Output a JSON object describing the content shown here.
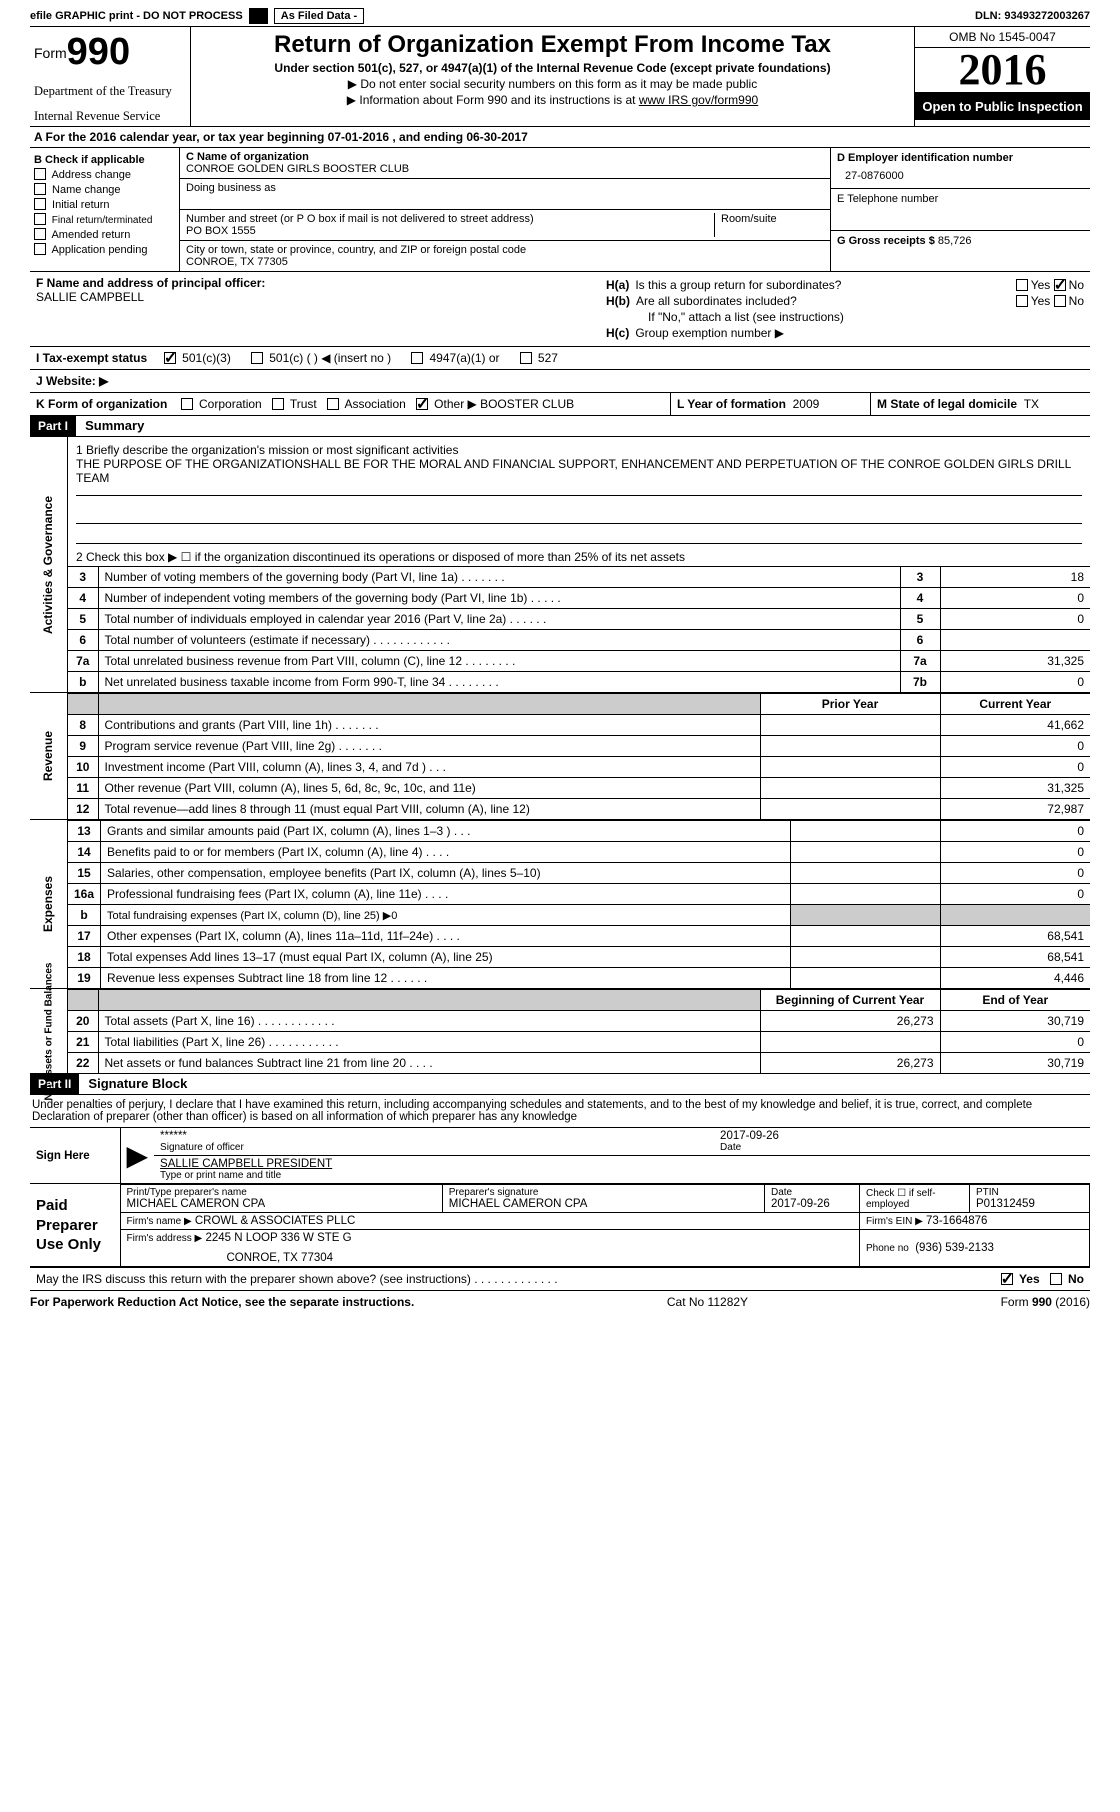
{
  "topbar": {
    "efile": "efile GRAPHIC print - DO NOT PROCESS",
    "asfiled": "As Filed Data -",
    "dln_label": "DLN:",
    "dln": "93493272003267"
  },
  "header": {
    "form_prefix": "Form",
    "form_number": "990",
    "dept1": "Department of the Treasury",
    "dept2": "Internal Revenue Service",
    "title": "Return of Organization Exempt From Income Tax",
    "subtitle": "Under section 501(c), 527, or 4947(a)(1) of the Internal Revenue Code (except private foundations)",
    "bullet1": "▶ Do not enter social security numbers on this form as it may be made public",
    "bullet2_pre": "▶ Information about Form 990 and its instructions is at ",
    "bullet2_link": "www IRS gov/form990",
    "omb": "OMB No  1545-0047",
    "year": "2016",
    "open_public": "Open to Public Inspection"
  },
  "calyear": "A   For the 2016 calendar year, or tax year beginning 07-01-2016    , and ending 06-30-2017",
  "secB": {
    "label": "B Check if applicable",
    "opts": [
      "Address change",
      "Name change",
      "Initial return",
      "Final return/terminated",
      "Amended return",
      "Application pending"
    ]
  },
  "secC": {
    "name_lbl": "C Name of organization",
    "name": "CONROE GOLDEN GIRLS BOOSTER CLUB",
    "dba_lbl": "Doing business as",
    "street_lbl": "Number and street (or P O  box if mail is not delivered to street address)",
    "room_lbl": "Room/suite",
    "street": "PO BOX 1555",
    "city_lbl": "City or town, state or province, country, and ZIP or foreign postal code",
    "city": "CONROE, TX  77305"
  },
  "secD": {
    "lbl": "D Employer identification number",
    "val": "27-0876000"
  },
  "secE": {
    "lbl": "E Telephone number"
  },
  "secG": {
    "lbl": "G Gross receipts $",
    "val": "85,726"
  },
  "secF": {
    "lbl": "F  Name and address of principal officer:",
    "val": "SALLIE CAMPBELL"
  },
  "secH": {
    "a_lbl": "H(a)",
    "a_txt": "Is this a group return for subordinates?",
    "b_lbl": "H(b)",
    "b_txt": "Are all subordinates included?",
    "b_note": "If \"No,\" attach a list  (see instructions)",
    "c_lbl": "H(c)",
    "c_txt": "Group exemption number ▶",
    "yes": "Yes",
    "no": "No"
  },
  "secI": {
    "lbl": "I   Tax-exempt status",
    "o1": "501(c)(3)",
    "o2": "501(c) (   ) ◀ (insert no )",
    "o3": "4947(a)(1) or",
    "o4": "527"
  },
  "secJ": "J   Website: ▶",
  "secK": {
    "lbl": "K Form of organization",
    "o1": "Corporation",
    "o2": "Trust",
    "o3": "Association",
    "o4": "Other ▶",
    "o4v": "BOOSTER CLUB"
  },
  "secL": {
    "lbl": "L Year of formation",
    "val": "2009"
  },
  "secM": {
    "lbl": "M State of legal domicile",
    "val": "TX"
  },
  "part1": {
    "hdr": "Part I",
    "title": "Summary"
  },
  "summary": {
    "q1": "1  Briefly describe the organization's mission or most significant activities",
    "q1_ans": "THE PURPOSE OF THE ORGANIZATIONSHALL BE FOR THE MORAL AND FINANCIAL SUPPORT, ENHANCEMENT AND PERPETUATION OF THE CONROE GOLDEN GIRLS DRILL TEAM",
    "q2": "2   Check this box ▶ ☐  if the organization discontinued its operations or disposed of more than 25% of its net assets",
    "side_ag": "Activities & Governance",
    "side_rev": "Revenue",
    "side_exp": "Expenses",
    "side_net": "Net Assets or Fund Balances",
    "rows_ag": [
      {
        "n": "3",
        "t": "Number of voting members of the governing body (Part VI, line 1a)   .    .    .    .    .    .    .",
        "box": "3",
        "v": "18"
      },
      {
        "n": "4",
        "t": "Number of independent voting members of the governing body (Part VI, line 1b)   .    .    .    .    .",
        "box": "4",
        "v": "0"
      },
      {
        "n": "5",
        "t": "Total number of individuals employed in calendar year 2016 (Part V, line 2a)   .    .    .    .    .    .",
        "box": "5",
        "v": "0"
      },
      {
        "n": "6",
        "t": "Total number of volunteers (estimate if necessary)    .    .    .    .    .    .    .    .    .    .    .    .",
        "box": "6",
        "v": ""
      },
      {
        "n": "7a",
        "t": "Total unrelated business revenue from Part VIII, column (C), line 12   .    .    .    .    .    .    .    .",
        "box": "7a",
        "v": "31,325"
      },
      {
        "n": "b",
        "t": "Net unrelated business taxable income from Form 990-T, line 34   .    .    .    .    .    .    .    .",
        "box": "7b",
        "v": "0"
      }
    ],
    "col_prior": "Prior Year",
    "col_curr": "Current Year",
    "rows_rev": [
      {
        "n": "8",
        "t": "Contributions and grants (Part VIII, line 1h)    .    .    .    .    .    .    .",
        "p": "",
        "v": "41,662"
      },
      {
        "n": "9",
        "t": "Program service revenue (Part VIII, line 2g)    .    .    .    .    .    .    .",
        "p": "",
        "v": "0"
      },
      {
        "n": "10",
        "t": "Investment income (Part VIII, column (A), lines 3, 4, and 7d )   .    .    .",
        "p": "",
        "v": "0"
      },
      {
        "n": "11",
        "t": "Other revenue (Part VIII, column (A), lines 5, 6d, 8c, 9c, 10c, and 11e)",
        "p": "",
        "v": "31,325"
      },
      {
        "n": "12",
        "t": "Total revenue—add lines 8 through 11 (must equal Part VIII, column (A), line 12)",
        "p": "",
        "v": "72,987"
      }
    ],
    "rows_exp": [
      {
        "n": "13",
        "t": "Grants and similar amounts paid (Part IX, column (A), lines 1–3 )   .    .    .",
        "p": "",
        "v": "0"
      },
      {
        "n": "14",
        "t": "Benefits paid to or for members (Part IX, column (A), line 4)   .    .    .    .",
        "p": "",
        "v": "0"
      },
      {
        "n": "15",
        "t": "Salaries, other compensation, employee benefits (Part IX, column (A), lines 5–10)",
        "p": "",
        "v": "0"
      },
      {
        "n": "16a",
        "t": "Professional fundraising fees (Part IX, column (A), line 11e)   .    .    .    .",
        "p": "",
        "v": "0"
      },
      {
        "n": "b",
        "t": "Total fundraising expenses (Part IX, column (D), line 25) ▶0",
        "p": "shade",
        "v": "shade",
        "small": true
      },
      {
        "n": "17",
        "t": "Other expenses (Part IX, column (A), lines 11a–11d, 11f–24e)   .    .    .    .",
        "p": "",
        "v": "68,541"
      },
      {
        "n": "18",
        "t": "Total expenses  Add lines 13–17 (must equal Part IX, column (A), line 25)",
        "p": "",
        "v": "68,541"
      },
      {
        "n": "19",
        "t": "Revenue less expenses  Subtract line 18 from line 12   .    .    .    .    .    .",
        "p": "",
        "v": "4,446"
      }
    ],
    "col_beg": "Beginning of Current Year",
    "col_end": "End of Year",
    "rows_net": [
      {
        "n": "20",
        "t": "Total assets (Part X, line 16)   .    .    .    .    .    .    .    .    .    .    .    .",
        "p": "26,273",
        "v": "30,719"
      },
      {
        "n": "21",
        "t": "Total liabilities (Part X, line 26)   .    .    .    .    .    .    .    .    .    .    .",
        "p": "",
        "v": "0"
      },
      {
        "n": "22",
        "t": "Net assets or fund balances  Subtract line 21 from line 20   .    .    .    .",
        "p": "26,273",
        "v": "30,719"
      }
    ]
  },
  "part2": {
    "hdr": "Part II",
    "title": "Signature Block"
  },
  "perjury": "Under penalties of perjury, I declare that I have examined this return, including accompanying schedules and statements, and to the best of my knowledge and belief, it is true, correct, and complete  Declaration of preparer (other than officer) is based on all information of which preparer has any knowledge",
  "sign": {
    "lbl": "Sign Here",
    "stars": "******",
    "sig_lbl": "Signature of officer",
    "date": "2017-09-26",
    "date_lbl": "Date",
    "name": "SALLIE CAMPBELL  PRESIDENT",
    "name_lbl": "Type or print name and title"
  },
  "preparer": {
    "lbl": "Paid Preparer Use Only",
    "name_lbl": "Print/Type preparer's name",
    "name": "MICHAEL CAMERON CPA",
    "sig_lbl": "Preparer's signature",
    "sig": "MICHAEL CAMERON CPA",
    "date_lbl": "Date",
    "date": "2017-09-26",
    "check_lbl": "Check ☐ if self-employed",
    "ptin_lbl": "PTIN",
    "ptin": "P01312459",
    "firm_name_lbl": "Firm's name    ▶",
    "firm_name": "CROWL & ASSOCIATES PLLC",
    "firm_ein_lbl": "Firm's EIN ▶",
    "firm_ein": "73-1664876",
    "firm_addr_lbl": "Firm's address ▶",
    "firm_addr1": "2245 N LOOP 336 W STE G",
    "firm_addr2": "CONROE, TX   77304",
    "phone_lbl": "Phone no",
    "phone": "(936) 539-2133"
  },
  "discuss_q": "May the IRS discuss this return with the preparer shown above? (see instructions)    .    .    .    .    .    .    .    .    .    .    .    .    .",
  "footer": {
    "left": "For Paperwork Reduction Act Notice, see the separate instructions.",
    "mid": "Cat No  11282Y",
    "right_pre": "Form ",
    "right_form": "990",
    "right_suf": " (2016)"
  }
}
